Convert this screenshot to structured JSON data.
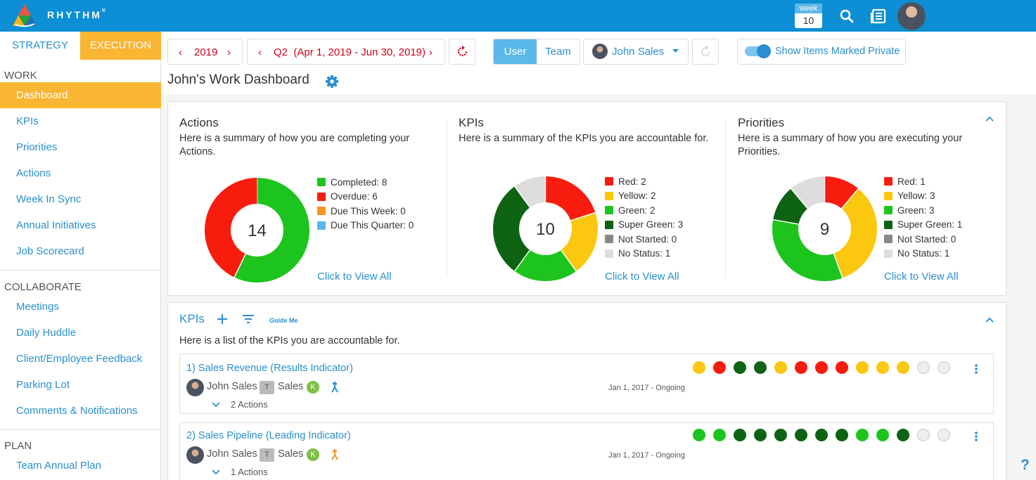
{
  "app": {
    "brand": "RHYTHM",
    "brand_mark": "®"
  },
  "topbar": {
    "week_label": "week",
    "week_number": "10"
  },
  "sidebar": {
    "modes": {
      "strategy": "STRATEGY",
      "execution": "EXECUTION"
    },
    "work_header": "WORK",
    "work_items": [
      "Dashboard",
      "KPIs",
      "Priorities",
      "Actions",
      "Week In Sync",
      "Annual Initiatives",
      "Job Scorecard"
    ],
    "collaborate_header": "COLLABORATE",
    "collaborate_items": [
      "Meetings",
      "Daily Huddle",
      "Client/Employee Feedback",
      "Parking Lot",
      "Comments & Notifications"
    ],
    "plan_header": "PLAN",
    "plan_items": [
      "Team Annual Plan"
    ]
  },
  "controls": {
    "year": "2019",
    "quarter": "Q2",
    "quarter_range": "(Apr 1, 2019 - Jun 30, 2019)",
    "user_tab": "User",
    "team_tab": "Team",
    "selected_user": "John Sales",
    "private_toggle_label": "Show Items Marked Private",
    "private_toggle_on": true
  },
  "page_title": "John's Work Dashboard",
  "summary": {
    "actions": {
      "title": "Actions",
      "description": "Here is a summary of how you are completing your Actions.",
      "total": "14",
      "legend": [
        "Completed: 8",
        "Overdue: 6",
        "Due This Week: 0",
        "Due This Quarter: 0"
      ],
      "colors": [
        "#1dc41d",
        "#f81c0e",
        "#f7941d",
        "#5bb8ea"
      ],
      "values": [
        8,
        6,
        0,
        0
      ],
      "link": "Click to View All"
    },
    "kpis": {
      "title": "KPIs",
      "description": "Here is a summary of the KPIs you are accountable for.",
      "total": "10",
      "legend": [
        "Red: 2",
        "Yellow: 2",
        "Green: 2",
        "Super Green: 3",
        "Not Started: 0",
        "No Status: 1"
      ],
      "colors": [
        "#f81c0e",
        "#fcc70f",
        "#1dc41d",
        "#0e6313",
        "#888888",
        "#dddddd"
      ],
      "values": [
        2,
        2,
        2,
        3,
        0,
        1
      ],
      "link": "Click to View All"
    },
    "priorities": {
      "title": "Priorities",
      "description": "Here is a summary of how you are executing your Priorities.",
      "total": "9",
      "legend": [
        "Red: 1",
        "Yellow: 3",
        "Green: 3",
        "Super Green: 1",
        "Not Started: 0",
        "No Status: 1"
      ],
      "colors": [
        "#f81c0e",
        "#fcc70f",
        "#1dc41d",
        "#0e6313",
        "#888888",
        "#dddddd"
      ],
      "values": [
        1,
        3,
        3,
        1,
        0,
        1
      ],
      "link": "Click to View All"
    }
  },
  "kpi_list": {
    "title": "KPIs",
    "guide": "Guide Me",
    "description": "Here is a list of the KPIs you are accountable for.",
    "items": [
      {
        "name": "1) Sales Revenue (Results Indicator)",
        "owner": "John Sales",
        "team_badge": "T",
        "team": "Sales",
        "k_badge": "K",
        "date": "Jan 1, 2017 - Ongoing",
        "actions": "2 Actions",
        "trend_color": "#2a8fd0",
        "statuses": [
          "#fcc70f",
          "#f81c0e",
          "#0e6313",
          "#0e6313",
          "#fcc70f",
          "#f81c0e",
          "#f81c0e",
          "#f81c0e",
          "#fcc70f",
          "#fcc70f",
          "#fcc70f",
          "#eeeeee",
          "#eeeeee"
        ]
      },
      {
        "name": "2) Sales Pipeline (Leading Indicator)",
        "owner": "John Sales",
        "team_badge": "T",
        "team": "Sales",
        "k_badge": "K",
        "date": "Jan 1, 2017 - Ongoing",
        "actions": "1 Actions",
        "trend_color": "#f7941d",
        "statuses": [
          "#1dc41d",
          "#1dc41d",
          "#0e6313",
          "#0e6313",
          "#0e6313",
          "#0e6313",
          "#0e6313",
          "#0e6313",
          "#1dc41d",
          "#1dc41d",
          "#0e6313",
          "#eeeeee",
          "#eeeeee"
        ]
      }
    ]
  },
  "help": "?"
}
